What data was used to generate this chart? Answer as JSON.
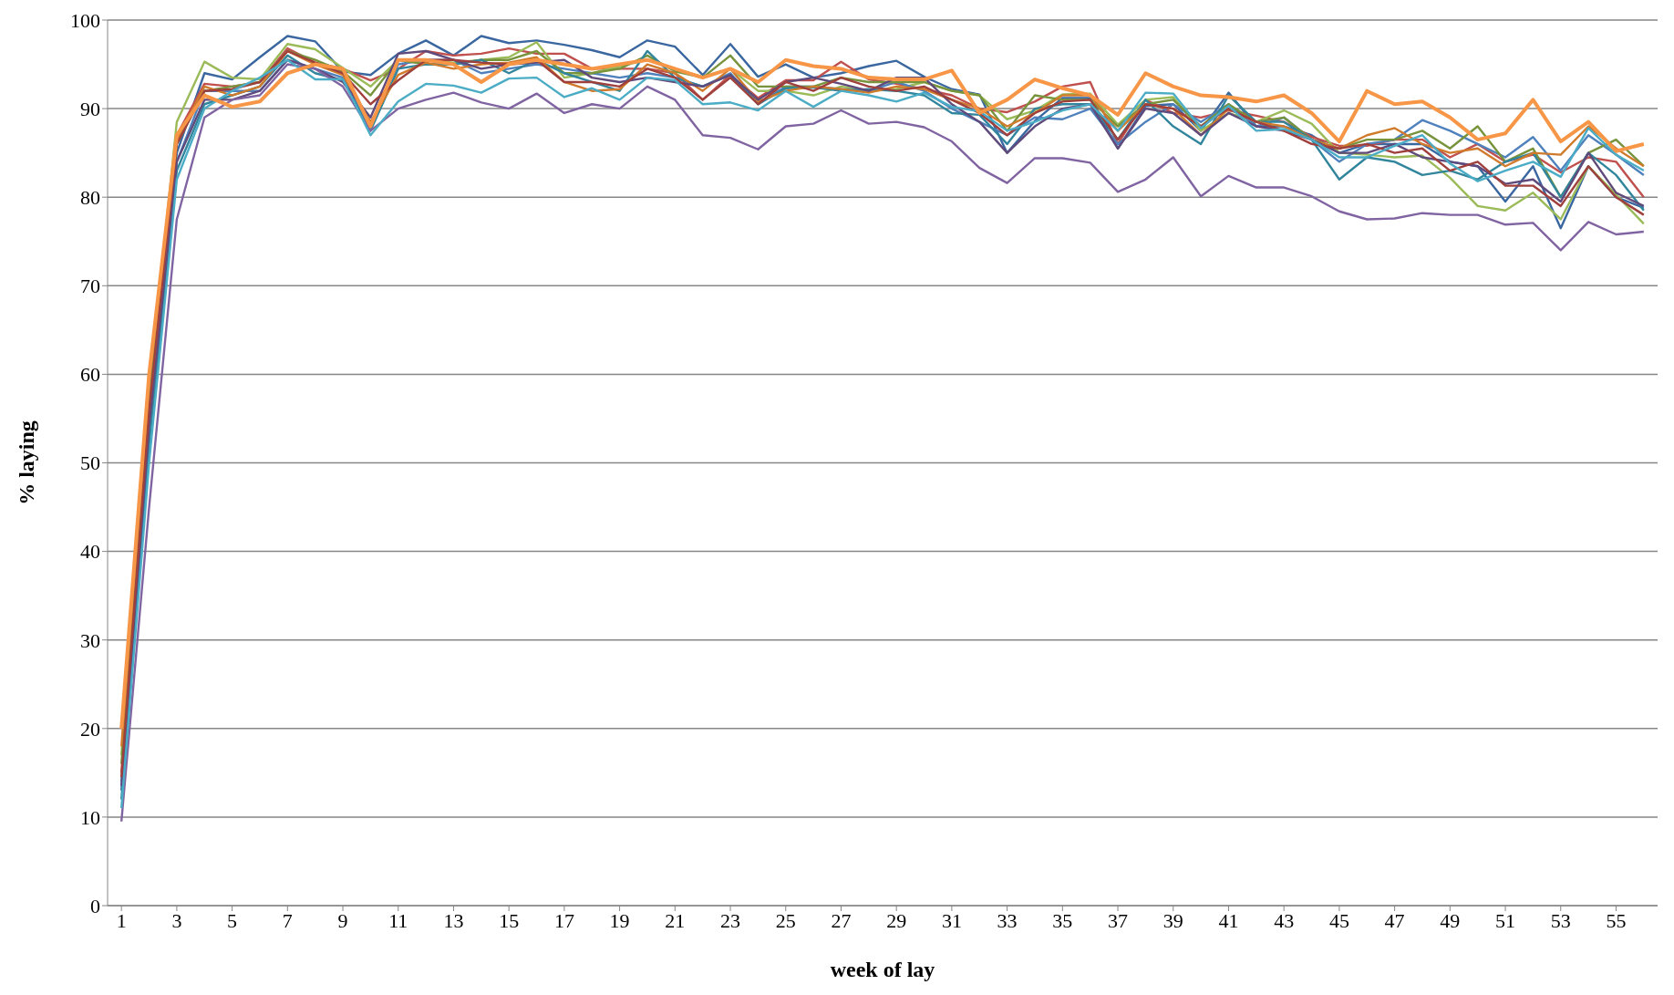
{
  "chart_data": {
    "type": "line",
    "xlabel": "week of lay",
    "ylabel": "% laying",
    "x": [
      1,
      2,
      3,
      4,
      5,
      6,
      7,
      8,
      9,
      10,
      11,
      12,
      13,
      14,
      15,
      16,
      17,
      18,
      19,
      20,
      21,
      22,
      23,
      24,
      25,
      26,
      27,
      28,
      29,
      30,
      31,
      32,
      33,
      34,
      35,
      36,
      37,
      38,
      39,
      40,
      41,
      42,
      43,
      44,
      45,
      46,
      47,
      48,
      49,
      50,
      51,
      52,
      53,
      54,
      55,
      56
    ],
    "xlim": [
      0.5,
      56.5
    ],
    "xticks": [
      1,
      3,
      5,
      7,
      9,
      11,
      13,
      15,
      17,
      19,
      21,
      23,
      25,
      27,
      29,
      31,
      33,
      35,
      37,
      39,
      41,
      43,
      45,
      47,
      49,
      51,
      53,
      55
    ],
    "ylim": [
      0,
      100
    ],
    "yticks": [
      0,
      10,
      20,
      30,
      40,
      50,
      60,
      70,
      80,
      90,
      100
    ],
    "grid": "y",
    "legend": false,
    "marker": "none",
    "line_style": "solid",
    "series": [
      {
        "color": "#3a67a0",
        "values": [
          13,
          55,
          85,
          94,
          93.3,
          95.8,
          98.2,
          97.6,
          94.2,
          93.8,
          96.2,
          97.7,
          96,
          98.2,
          97.4,
          97.7,
          97.2,
          96.6,
          95.8,
          97.7,
          97,
          93.8,
          97.3,
          93.6,
          95,
          93.5,
          94,
          94.8,
          95.4,
          93.6,
          92.2,
          91.6,
          85,
          88.6,
          91.2,
          91.2,
          85.5,
          90.3,
          90.5,
          87.5,
          91.8,
          88,
          88,
          87,
          85,
          86,
          86,
          86,
          84,
          83.5,
          79.5,
          83.5,
          76.5,
          83.5,
          80,
          78.8
        ]
      },
      {
        "color": "#c0504d",
        "values": [
          15,
          57,
          87,
          92.8,
          92.5,
          93,
          96.8,
          95.2,
          94.5,
          93.2,
          94.5,
          96.5,
          96,
          96.2,
          96.8,
          96.2,
          96.2,
          94.5,
          94.5,
          94.5,
          94,
          91,
          93.8,
          91.2,
          93.2,
          93.2,
          95.3,
          93.3,
          92.8,
          92.2,
          91.5,
          90,
          89.6,
          90.8,
          92.5,
          93,
          86,
          91,
          89.5,
          89,
          89.8,
          89.2,
          88.5,
          86.8,
          85.8,
          85.8,
          86.5,
          86.5,
          84.5,
          86,
          84,
          84.8,
          82.8,
          84.5,
          84,
          80
        ]
      },
      {
        "color": "#9bbb59",
        "values": [
          17,
          58,
          88.5,
          95.3,
          93.5,
          93.3,
          97.3,
          96.7,
          94.6,
          92.5,
          95.5,
          95.5,
          95.2,
          95.5,
          95.8,
          97.5,
          93.5,
          94,
          94.8,
          95.5,
          94.5,
          93.6,
          94.5,
          92,
          92,
          91.5,
          92.5,
          92,
          92.2,
          93,
          92,
          91.5,
          88.8,
          89.8,
          91.6,
          91.7,
          88.2,
          91,
          91.3,
          87.5,
          89.5,
          88.5,
          89.8,
          88.3,
          85,
          84.8,
          84.5,
          84.7,
          82.2,
          79,
          78.5,
          80.5,
          77.5,
          83.5,
          80.3,
          77
        ]
      },
      {
        "color": "#4f81bd",
        "values": [
          14,
          56,
          84,
          92,
          92,
          92,
          95.5,
          94.5,
          93.5,
          88,
          95,
          95.5,
          95.5,
          94,
          94.5,
          95,
          94.5,
          94,
          93.5,
          94,
          93.5,
          92.5,
          94,
          90.5,
          92.5,
          92.5,
          92.2,
          92,
          93,
          92,
          90,
          88.5,
          87,
          89,
          88.8,
          90,
          86,
          88.5,
          90.5,
          88.5,
          90.5,
          88,
          89,
          86.5,
          84,
          86,
          86.5,
          88.7,
          87.5,
          86,
          84.5,
          86.8,
          83,
          87,
          84.8,
          82.5
        ]
      },
      {
        "color": "#77933c",
        "values": [
          16,
          57,
          86,
          92,
          92.5,
          93,
          96.5,
          95.5,
          94.2,
          91.5,
          95.5,
          95,
          95,
          95.5,
          95.5,
          96.5,
          94,
          94,
          94.5,
          96,
          94.2,
          93.5,
          96,
          92.5,
          92.5,
          92.5,
          93.5,
          93,
          93,
          93,
          92,
          91.5,
          87.5,
          91.5,
          91,
          91,
          88,
          90.5,
          91,
          88,
          90.5,
          88.5,
          89,
          86.5,
          85.5,
          86.5,
          86.5,
          87.5,
          85.5,
          88,
          84,
          85.5,
          80,
          85,
          86.5,
          83.5
        ]
      },
      {
        "color": "#31859c",
        "values": [
          12,
          52,
          83,
          90.5,
          91.5,
          92.5,
          96,
          94,
          93.2,
          87.5,
          94.5,
          95,
          95,
          95.5,
          94,
          95.5,
          94,
          93,
          92,
          96.5,
          93.5,
          92.5,
          93.8,
          90.5,
          92.3,
          92.4,
          92,
          92.2,
          92,
          91.5,
          89.5,
          89.3,
          86,
          90,
          90.5,
          90.5,
          86.5,
          91,
          88,
          86,
          91.5,
          88.5,
          88.5,
          86.5,
          82,
          84.5,
          84,
          82.5,
          83,
          82,
          84,
          85,
          80,
          85,
          82.5,
          78.5
        ]
      },
      {
        "color": "#d07a2c",
        "values": [
          18,
          59,
          86.5,
          92.5,
          91.5,
          92.5,
          96.5,
          95,
          93.8,
          88.5,
          93.8,
          95.2,
          94.5,
          95,
          95.2,
          95.8,
          93,
          92,
          92.2,
          95,
          94,
          92,
          94.5,
          90.8,
          92,
          92.5,
          92.2,
          91.8,
          92.5,
          92.2,
          91,
          90,
          88,
          89.5,
          91.5,
          91.5,
          87.5,
          90.5,
          90,
          87,
          90,
          88.5,
          88,
          86.5,
          85.5,
          87,
          87.8,
          86,
          85,
          85.5,
          83.5,
          85,
          84.8,
          88,
          85.5,
          83.5
        ]
      },
      {
        "color": "#5f4a7b",
        "values": [
          13.5,
          54,
          84,
          91,
          91,
          92,
          95.5,
          94.5,
          93,
          89,
          96.2,
          96.5,
          95.5,
          94.5,
          95,
          95.2,
          95.5,
          93.5,
          93,
          93.5,
          93,
          92.5,
          93.8,
          91,
          93,
          93.5,
          92.8,
          92,
          93.5,
          93.5,
          90.5,
          88.5,
          85,
          88,
          90,
          90.5,
          85.5,
          90,
          89.5,
          87,
          89.5,
          88,
          87.5,
          86.5,
          85,
          85,
          86,
          84.5,
          84,
          83.5,
          81.5,
          82,
          79.5,
          85,
          80.5,
          79
        ]
      },
      {
        "color": "#a0403d",
        "values": [
          14.5,
          56,
          86,
          92,
          92.2,
          93,
          96.5,
          95.2,
          94,
          90.5,
          93.2,
          95.5,
          95.5,
          95.2,
          95,
          95.5,
          93,
          93,
          92.5,
          94.5,
          93.5,
          91,
          93.5,
          90.5,
          93,
          92,
          93.5,
          92.5,
          92,
          92.5,
          91,
          89.5,
          87,
          89.5,
          90.8,
          91,
          86.5,
          90.5,
          90,
          88,
          90,
          88.5,
          87.5,
          86,
          85.5,
          86,
          85,
          85.5,
          83,
          84,
          81.3,
          81.3,
          79,
          83.5,
          80,
          78
        ]
      },
      {
        "color": "#8064a2",
        "values": [
          9.5,
          45,
          77.5,
          89,
          91,
          91.5,
          95,
          94.5,
          92.5,
          87.5,
          90,
          91,
          91.8,
          90.7,
          90,
          91.7,
          89.5,
          90.5,
          90,
          92.5,
          91,
          87,
          86.7,
          85.4,
          88,
          88.3,
          89.8,
          88.3,
          88.5,
          87.9,
          86.3,
          83.3,
          81.6,
          84.4,
          84.4,
          83.9,
          80.6,
          82,
          84.5,
          80.1,
          82.4,
          81.1,
          81.1,
          80.1,
          78.4,
          77.5,
          77.6,
          78.2,
          78,
          78,
          76.9,
          77.1,
          74,
          77.2,
          75.8,
          76.1
        ]
      },
      {
        "color": "#4bacc6",
        "values": [
          11,
          50,
          82,
          90,
          92,
          93.5,
          95.5,
          93.3,
          93.3,
          87,
          90.8,
          92.8,
          92.6,
          91.8,
          93.4,
          93.5,
          91.3,
          92.3,
          91,
          93.5,
          93.2,
          90.5,
          90.7,
          89.8,
          92,
          90.2,
          92,
          91.5,
          90.8,
          91.8,
          90.2,
          89.7,
          87.5,
          88.5,
          89.8,
          90.5,
          87.5,
          91.8,
          91.7,
          87.8,
          90.3,
          87.5,
          87.7,
          86.5,
          84.5,
          84.5,
          85.8,
          87,
          83.8,
          81.8,
          83,
          84,
          82.3,
          87.8,
          84.8,
          83
        ]
      },
      {
        "color": "#f79646",
        "values": [
          20,
          60,
          87,
          91.5,
          90.2,
          90.8,
          94,
          95,
          94.5,
          88,
          95.5,
          95.5,
          95,
          93,
          95,
          95.5,
          95,
          94.5,
          95,
          95.5,
          94.5,
          93.5,
          94.5,
          93,
          95.5,
          94.8,
          94.5,
          93.5,
          93.3,
          93.3,
          94.3,
          89.5,
          91,
          93.3,
          92.3,
          91.5,
          89.3,
          94,
          92.5,
          91.5,
          91.3,
          90.8,
          91.5,
          89.5,
          86.3,
          92,
          90.5,
          90.8,
          89,
          86.5,
          87.2,
          91,
          86.3,
          88.5,
          85.2,
          86
        ]
      }
    ]
  }
}
